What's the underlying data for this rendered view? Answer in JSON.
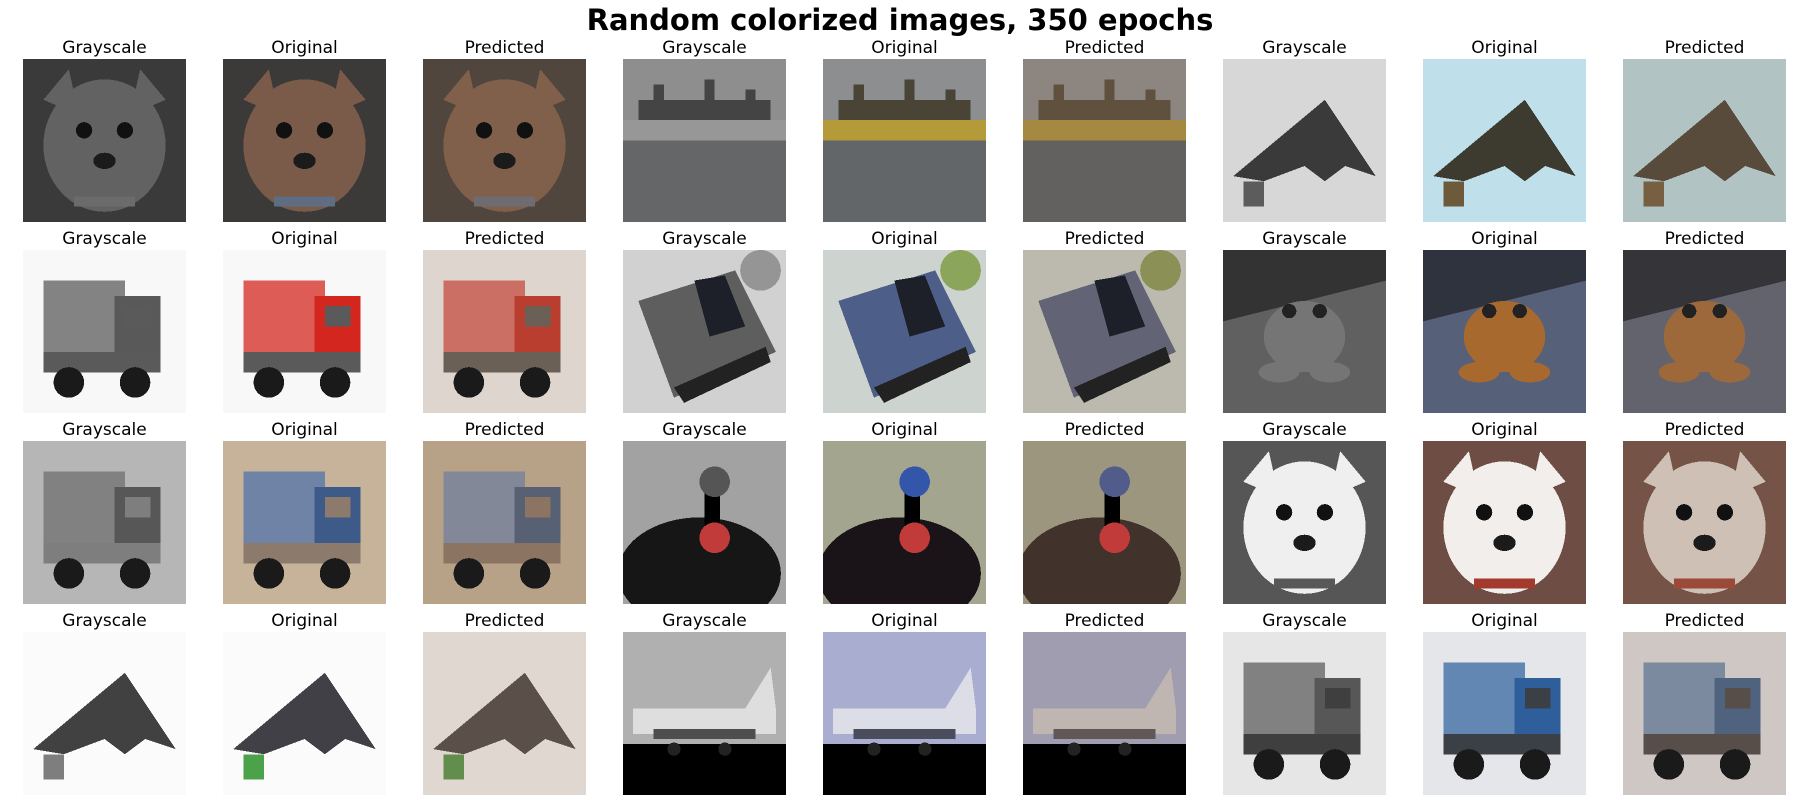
{
  "figure": {
    "title": "Random colorized images, 350 epochs"
  },
  "labels": {
    "grayscale": "Grayscale",
    "original": "Original",
    "predicted": "Predicted"
  },
  "grid": {
    "rows": [
      {
        "samples": [
          {
            "subject": "dog",
            "colors": {
              "fg": "#7a5a48",
              "bg": "#3c3a38",
              "accent": "#5f6d82"
            }
          },
          {
            "subject": "ship",
            "colors": {
              "fg": "#4a4436",
              "bg": "#8c8e90",
              "accent": "#b59a3a"
            }
          },
          {
            "subject": "stealth-plane",
            "colors": {
              "fg": "#3d3a30",
              "bg": "#bfe0ea",
              "accent": "#6d5a3a"
            }
          }
        ]
      },
      {
        "samples": [
          {
            "subject": "truck",
            "colors": {
              "fg": "#d2261e",
              "bg": "#f8f8f8",
              "accent": "#5a5a5a"
            }
          },
          {
            "subject": "car",
            "colors": {
              "fg": "#4d5f88",
              "bg": "#cdd3cf",
              "accent": "#8ba55a"
            }
          },
          {
            "subject": "frog",
            "colors": {
              "fg": "#a8692f",
              "bg": "#566078",
              "accent": "#7b6546"
            }
          }
        ]
      },
      {
        "samples": [
          {
            "subject": "truck",
            "colors": {
              "fg": "#3d5a88",
              "bg": "#c6b39a",
              "accent": "#8c7a6d"
            }
          },
          {
            "subject": "bird",
            "colors": {
              "fg": "#1a1418",
              "bg": "#a3a58f",
              "accent": "#3355aa"
            }
          },
          {
            "subject": "dog",
            "colors": {
              "fg": "#f2eeeb",
              "bg": "#6e4d45",
              "accent": "#a4392e"
            }
          }
        ]
      },
      {
        "samples": [
          {
            "subject": "stealth-plane",
            "colors": {
              "fg": "#404046",
              "bg": "#fbfbfb",
              "accent": "#4ba24b"
            }
          },
          {
            "subject": "airplane",
            "colors": {
              "fg": "#dcdde6",
              "bg": "#a9aed0",
              "accent": "#4b4d5c"
            }
          },
          {
            "subject": "truck",
            "colors": {
              "fg": "#2f5f9a",
              "bg": "#e4e6ea",
              "accent": "#3b3f46"
            }
          }
        ]
      }
    ]
  }
}
